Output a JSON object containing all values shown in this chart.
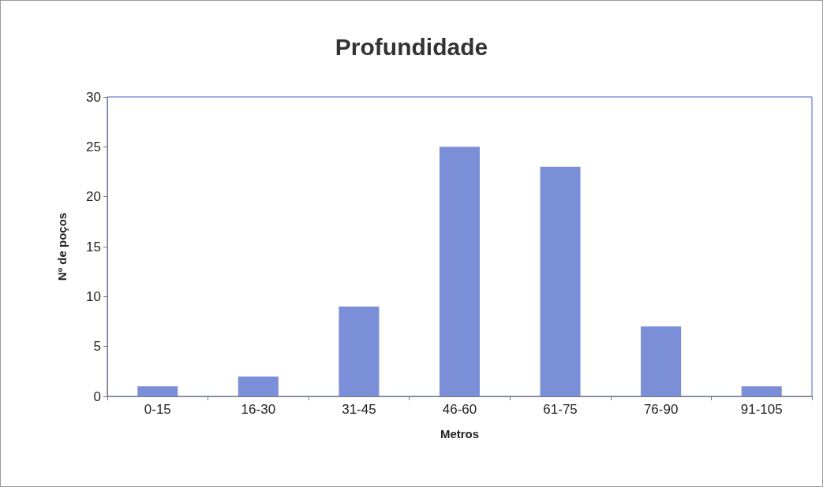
{
  "chart_data": {
    "type": "bar",
    "title": "Profundidade",
    "xlabel": "Metros",
    "ylabel": "Nº de poços",
    "categories": [
      "0-15",
      "16-30",
      "31-45",
      "46-60",
      "61-75",
      "76-90",
      "91-105"
    ],
    "values": [
      1,
      2,
      9,
      25,
      23,
      7,
      1
    ],
    "color": "#7b8ed8",
    "ylim": [
      0,
      30
    ],
    "yticks": [
      0,
      5,
      10,
      15,
      20,
      25,
      30
    ],
    "grid": false
  }
}
